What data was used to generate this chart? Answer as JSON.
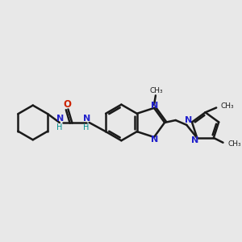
{
  "bg_color": "#e8e8e8",
  "bond_color": "#1a1a1a",
  "N_color": "#2222cc",
  "O_color": "#cc2200",
  "NH_color": "#009090",
  "lw": 1.8,
  "figsize": [
    3.0,
    3.0
  ],
  "dpi": 100,
  "xlim": [
    0,
    300
  ],
  "ylim": [
    0,
    300
  ]
}
